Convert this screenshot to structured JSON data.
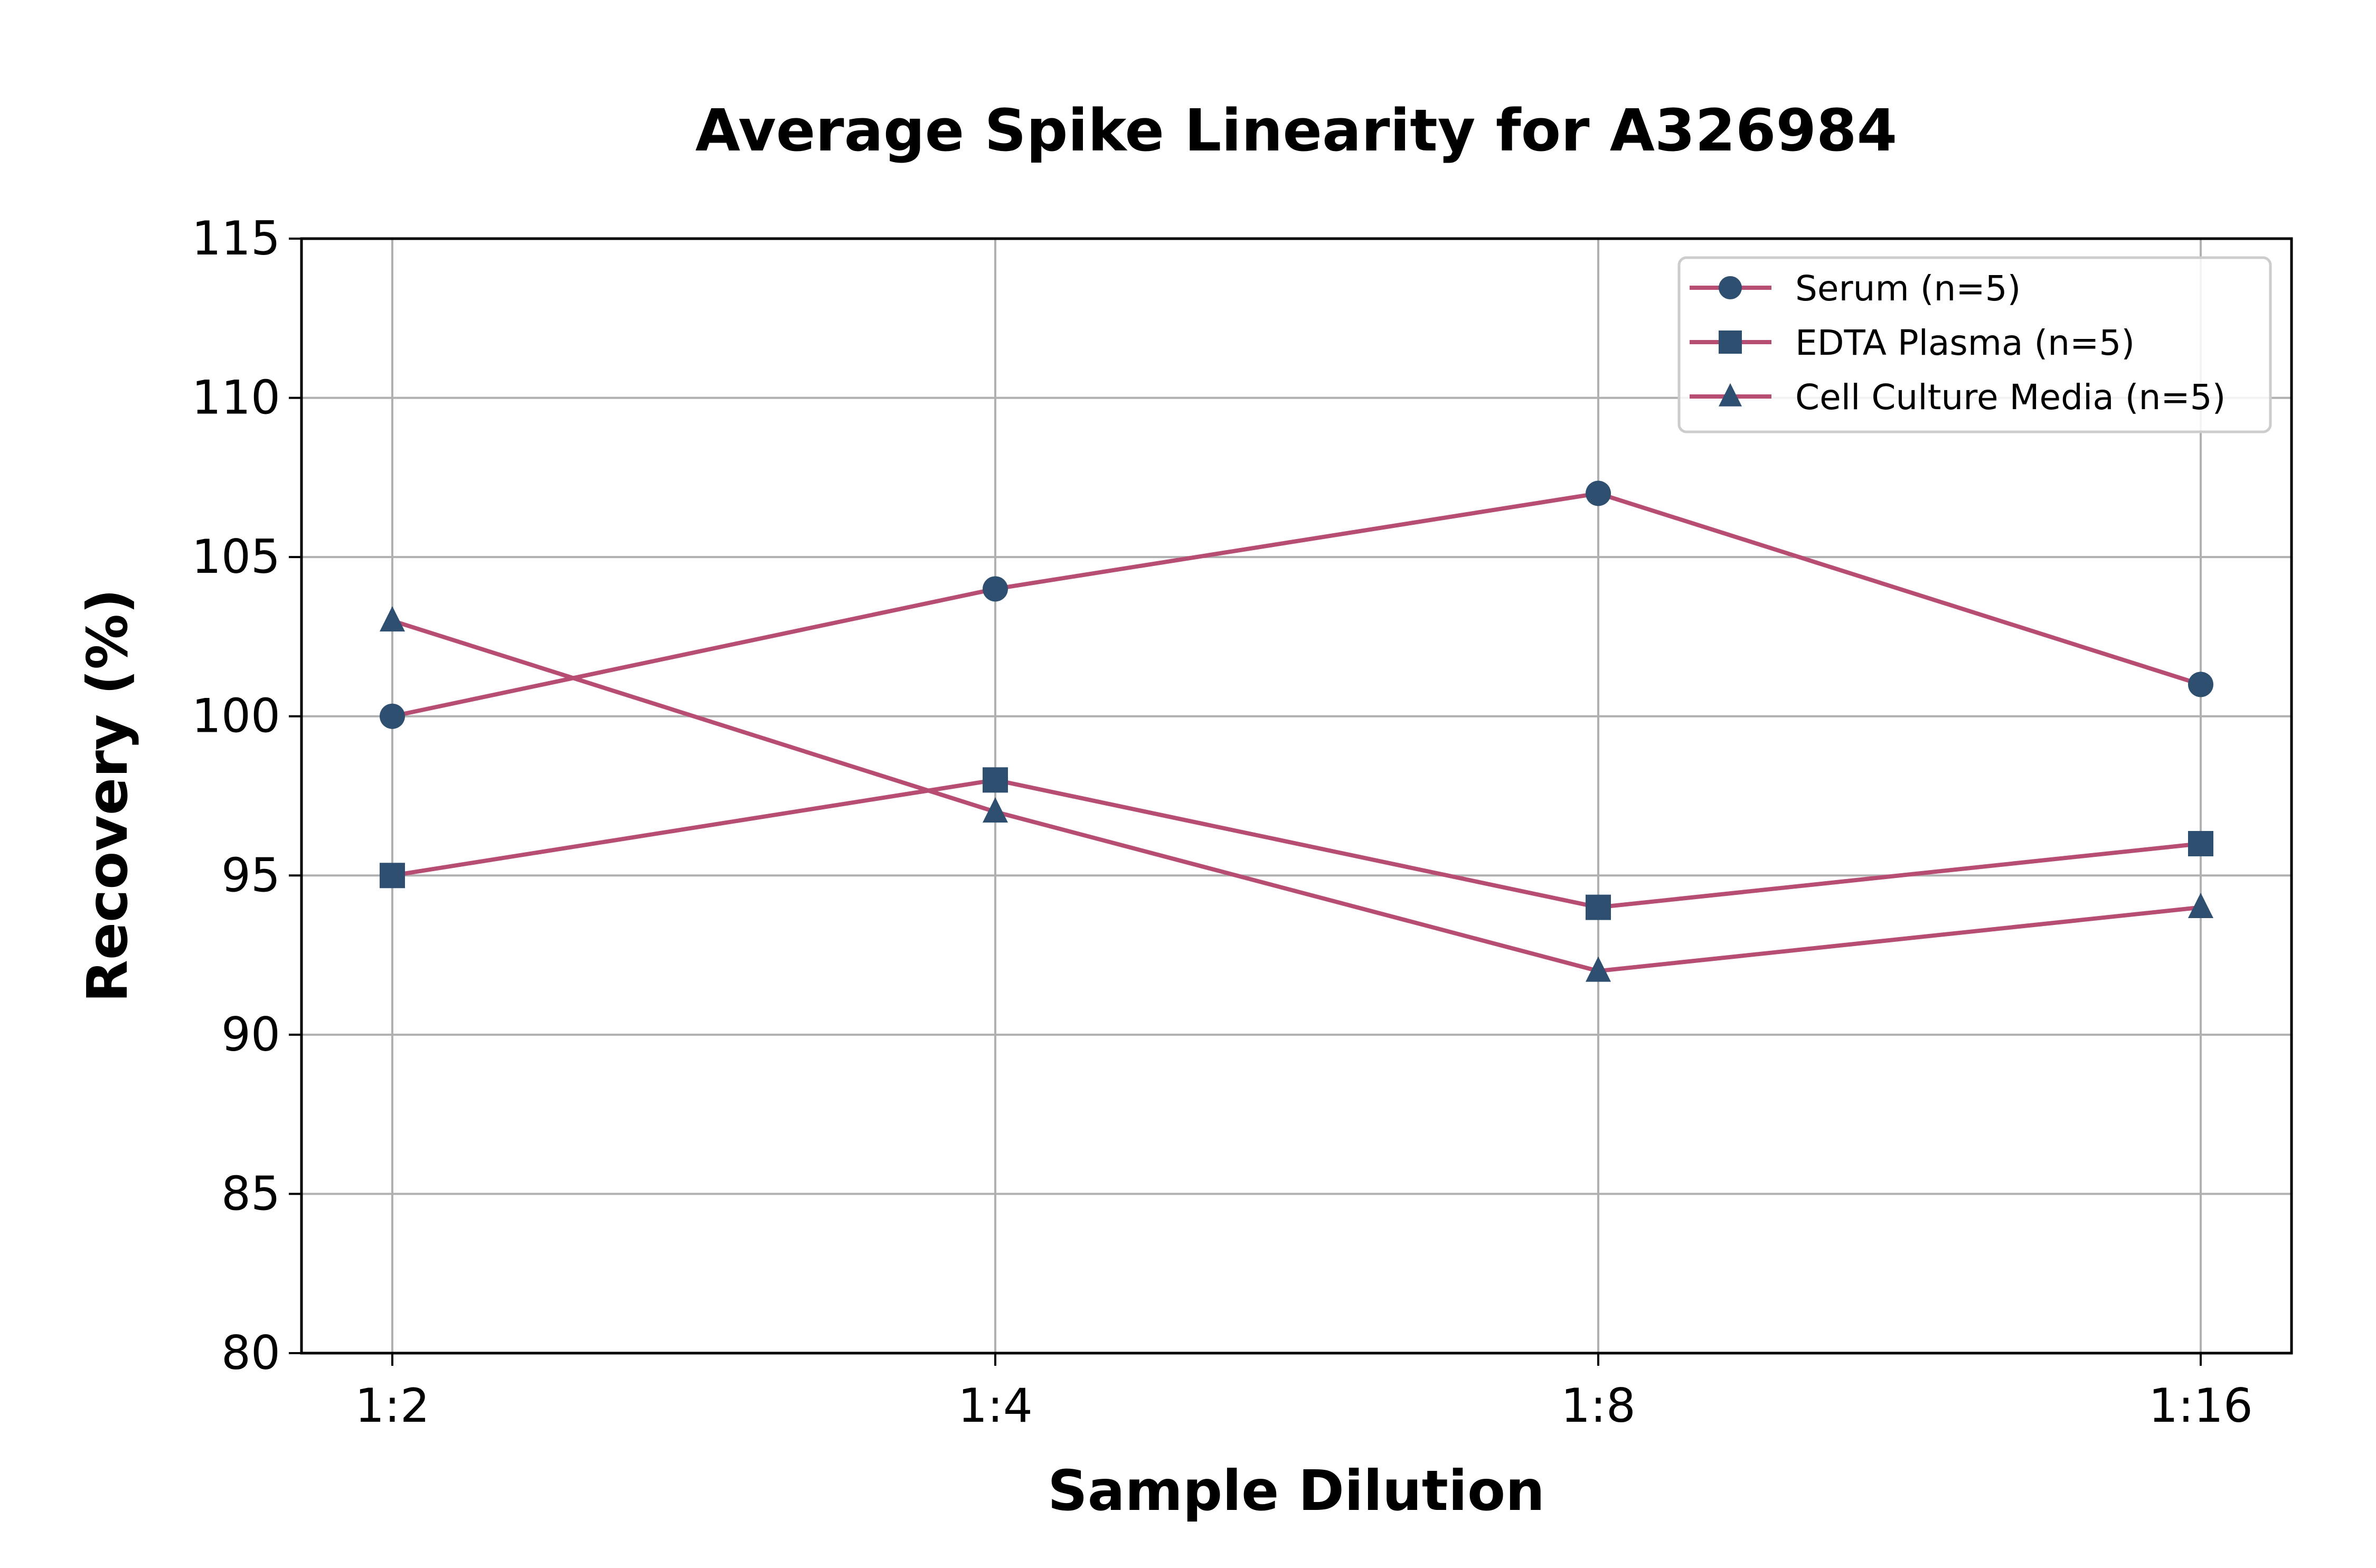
{
  "chart_data": {
    "type": "line",
    "title": "Average Spike Linearity for A326984",
    "xlabel": "Sample Dilution",
    "ylabel": "Recovery (%)",
    "categories": [
      "1:2",
      "1:4",
      "1:8",
      "1:16"
    ],
    "ylim": [
      80,
      115
    ],
    "yticks": [
      80,
      85,
      90,
      95,
      100,
      105,
      110,
      115
    ],
    "ytick_labels": [
      "80",
      "85",
      "90",
      "95",
      "100",
      "105",
      "110",
      "115"
    ],
    "grid": true,
    "legend_position": "top-right",
    "line_color": "#b84d74",
    "marker_color": "#2e4f70",
    "series": [
      {
        "name": "Serum (n=5)",
        "marker": "circle",
        "values": [
          100,
          104,
          107,
          101
        ]
      },
      {
        "name": "EDTA Plasma (n=5)",
        "marker": "square",
        "values": [
          95,
          98,
          94,
          96
        ]
      },
      {
        "name": "Cell Culture Media (n=5)",
        "marker": "triangle",
        "values": [
          103,
          97,
          92,
          94
        ]
      }
    ]
  }
}
